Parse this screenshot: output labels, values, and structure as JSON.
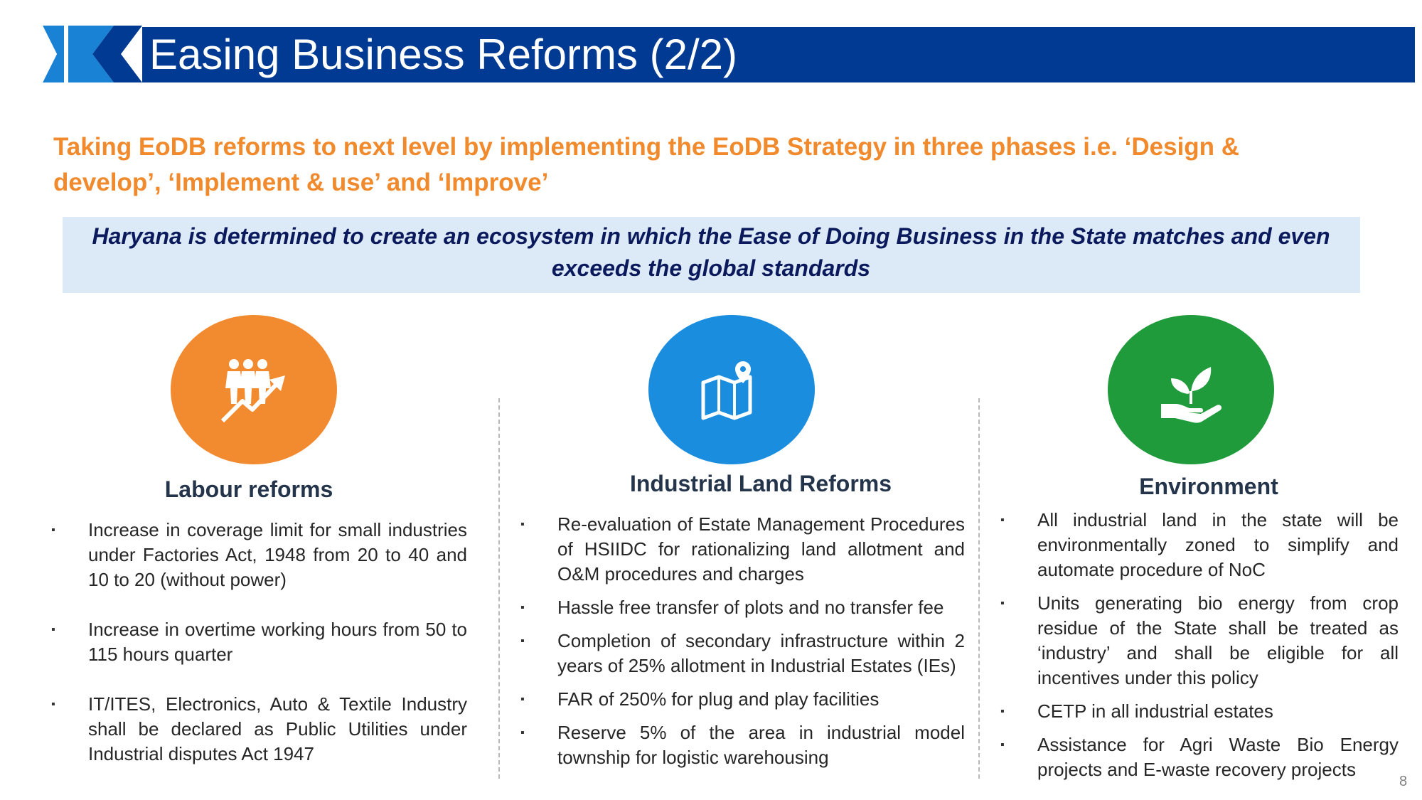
{
  "title": "Easing Business Reforms (2/2)",
  "subtitle": "Taking EoDB reforms to next level by implementing the EoDB Strategy in three phases i.e. ‘Design & develop’,  ‘Implement & use’ and ‘Improve’",
  "quote": "Haryana is determined to create an ecosystem in which the Ease of Doing Business in the State matches and even  exceeds the global standards",
  "bullet": "▪",
  "colors": {
    "title_bar": "#003a92",
    "accent_orange": "#f08a2c",
    "quote_bg": "#dce9f6",
    "labour": "#f28b30",
    "land": "#1b8ddf",
    "environment": "#1f9b3b"
  },
  "columns": [
    {
      "heading": "Labour reforms",
      "icon": "workforce-growth-icon",
      "items": [
        "Increase in coverage limit for small industries under Factories Act, 1948 from 20 to 40 and 10 to 20 (without power)",
        "Increase in overtime working hours from 50 to 115 hours quarter",
        "IT/ITES, Electronics, Auto & Textile Industry shall be declared as Public Utilities under Industrial disputes Act 1947"
      ]
    },
    {
      "heading": "Industrial Land Reforms",
      "icon": "map-location-icon",
      "items": [
        "Re-evaluation of Estate Management Procedures of HSIIDC for rationalizing land allotment and O&M procedures and charges",
        "Hassle free transfer of plots and no transfer fee",
        "Completion of secondary infrastructure within 2 years of 25% allotment in Industrial Estates (IEs)",
        "FAR of 250% for plug and play facilities",
        "Reserve 5% of the area in industrial model township for logistic warehousing"
      ]
    },
    {
      "heading": "Environment",
      "icon": "hand-plant-icon",
      "items": [
        "All industrial land in the state will be environmentally zoned to simplify and automate procedure of NoC",
        "Units generating bio energy from crop residue of the State shall be treated as ‘industry’ and shall be eligible for all incentives under this policy",
        "CETP in all industrial estates",
        "Assistance for Agri Waste Bio Energy projects and E-waste recovery projects"
      ]
    }
  ],
  "page_number": "8"
}
